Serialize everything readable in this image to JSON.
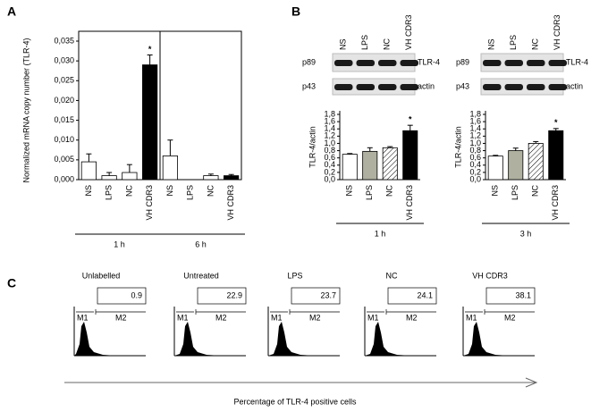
{
  "panel_labels": [
    "A",
    "B",
    "C"
  ],
  "chart_data": [
    {
      "type": "bar",
      "ylabel": "Normalized mRNA copy number (TLR-4)",
      "box": true,
      "groups": [
        "1 h",
        "6 h"
      ],
      "categories": [
        "NS",
        "LPS",
        "NC",
        "VH CDR3",
        "NS",
        "LPS",
        "NC",
        "VH CDR3"
      ],
      "values": [
        0.0045,
        0.001,
        0.0018,
        0.029,
        0.006,
        0,
        0.001,
        0.001
      ],
      "errors": [
        0.002,
        0.0008,
        0.002,
        0.0025,
        0.004,
        0,
        0.0004,
        0.0003
      ],
      "colors": [
        "#ffffff",
        "#ffffff",
        "#ffffff",
        "#000000",
        "#ffffff",
        "#ffffff",
        "#ffffff",
        "#000000"
      ],
      "hatch": [
        false,
        false,
        false,
        false,
        false,
        false,
        false,
        false
      ],
      "significance": [
        null,
        null,
        null,
        "*",
        null,
        null,
        null,
        null
      ],
      "ylim": [
        0,
        0.035
      ],
      "yticks": [
        {
          "value": 0,
          "label": "0,000"
        },
        {
          "value": 0.005,
          "label": "0,005"
        },
        {
          "value": 0.01,
          "label": "0,010"
        },
        {
          "value": 0.015,
          "label": "0,015"
        },
        {
          "value": 0.02,
          "label": "0,020"
        },
        {
          "value": 0.025,
          "label": "0,025"
        },
        {
          "value": 0.03,
          "label": "0,030"
        },
        {
          "value": 0.035,
          "label": "0,035"
        }
      ]
    },
    {
      "type": "bar",
      "ylabel": "TLR-4/actin",
      "box": false,
      "groups": [
        "1 h"
      ],
      "categories": [
        "NS",
        "LPS",
        "NC",
        "VH CDR3"
      ],
      "values": [
        0.7,
        0.78,
        0.88,
        1.35
      ],
      "errors": [
        0.02,
        0.1,
        0.03,
        0.15
      ],
      "colors": [
        "#ffffff",
        "#b0b0a0",
        "#ffffff",
        "#000000"
      ],
      "hatch": [
        false,
        false,
        true,
        false
      ],
      "significance": [
        null,
        null,
        null,
        "*"
      ],
      "blot": {
        "columns": [
          "NS",
          "LPS",
          "NC",
          "VH CDR3"
        ],
        "rows": [
          [
            "p89",
            "TLR-4"
          ],
          [
            "p43",
            "actin"
          ]
        ]
      },
      "ylim": [
        0,
        1.8
      ],
      "yticks": [
        {
          "value": 0,
          "label": "0,0"
        },
        {
          "value": 0.2,
          "label": "0,2"
        },
        {
          "value": 0.4,
          "label": "0,4"
        },
        {
          "value": 0.6,
          "label": "0,6"
        },
        {
          "value": 0.8,
          "label": "0,8"
        },
        {
          "value": 1,
          "label": "1,0"
        },
        {
          "value": 1.2,
          "label": "1,2"
        },
        {
          "value": 1.4,
          "label": "1,4"
        },
        {
          "value": 1.6,
          "label": "1,6"
        },
        {
          "value": 1.8,
          "label": "1,8"
        }
      ]
    },
    {
      "type": "bar",
      "ylabel": "TLR-4/actin",
      "box": false,
      "groups": [
        "3 h"
      ],
      "categories": [
        "NS",
        "LPS",
        "NC",
        "VH CDR3"
      ],
      "values": [
        0.65,
        0.8,
        1.0,
        1.35
      ],
      "errors": [
        0.02,
        0.07,
        0.05,
        0.06
      ],
      "colors": [
        "#ffffff",
        "#b0b0a0",
        "#ffffff",
        "#000000"
      ],
      "hatch": [
        false,
        false,
        true,
        false
      ],
      "significance": [
        null,
        null,
        null,
        "*"
      ],
      "blot": {
        "columns": [
          "NS",
          "LPS",
          "NC",
          "VH CDR3"
        ],
        "rows": [
          [
            "p89",
            "TLR-4"
          ],
          [
            "p43",
            "actin"
          ]
        ]
      },
      "ylim": [
        0,
        1.8
      ],
      "yticks": [
        {
          "value": 0,
          "label": "0,0"
        },
        {
          "value": 0.2,
          "label": "0,2"
        },
        {
          "value": 0.4,
          "label": "0,4"
        },
        {
          "value": 0.6,
          "label": "0,6"
        },
        {
          "value": 0.8,
          "label": "0,8"
        },
        {
          "value": 1,
          "label": "1,0"
        },
        {
          "value": 1.2,
          "label": "1,2"
        },
        {
          "value": 1.4,
          "label": "1,4"
        },
        {
          "value": 1.6,
          "label": "1,6"
        },
        {
          "value": 1.8,
          "label": "1,8"
        }
      ]
    }
  ],
  "flow": {
    "xlabel": "Percentage of TLR-4 positive cells",
    "gates": [
      "M1",
      "M2"
    ],
    "panels": [
      {
        "title": "Unlabelled",
        "value": 0.9
      },
      {
        "title": "Untreated",
        "value": 22.9
      },
      {
        "title": "LPS",
        "value": 23.7
      },
      {
        "title": "NC",
        "value": 24.1
      },
      {
        "title": "VH CDR3",
        "value": 38.1
      }
    ]
  }
}
